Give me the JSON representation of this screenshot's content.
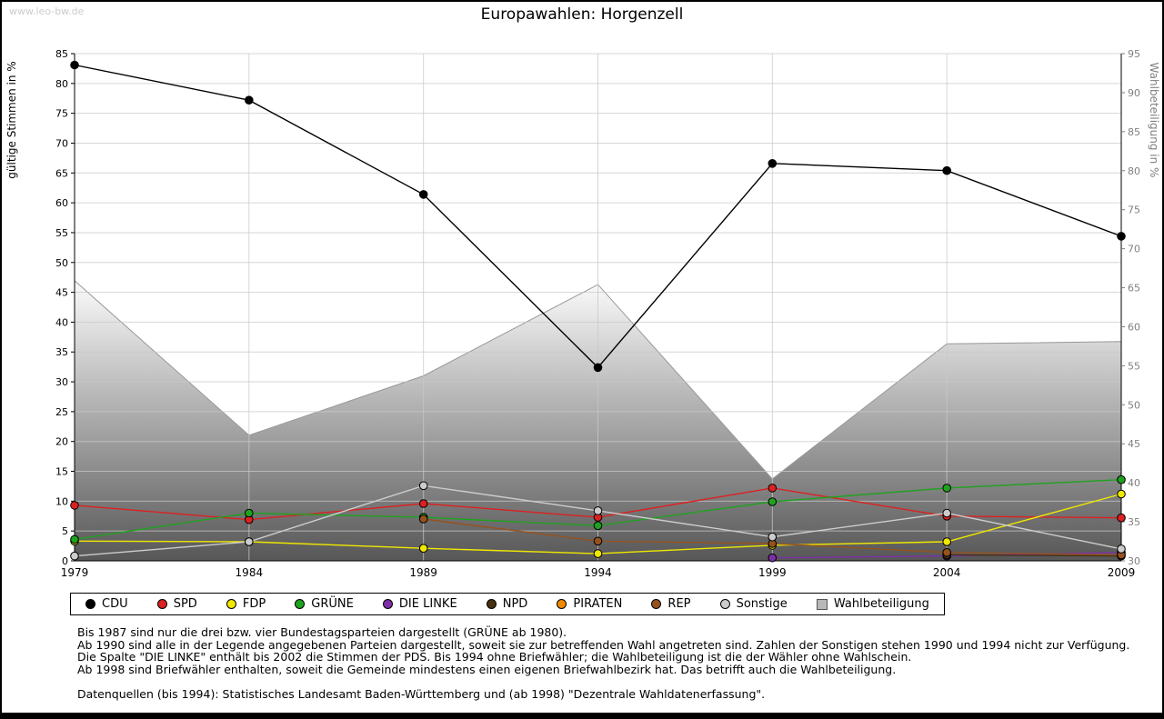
{
  "page": {
    "watermark": "www.leo-bw.de",
    "title": "Europawahlen: Horgenzell"
  },
  "chart_data": {
    "type": "line",
    "title": "Europawahlen: Horgenzell",
    "x": [
      1979,
      1984,
      1989,
      1994,
      1999,
      2004,
      2009
    ],
    "left_axis": {
      "label": "gültige Stimmen in %",
      "min": 0,
      "max": 85,
      "step": 5
    },
    "right_axis": {
      "label": "Wahlbeteiligung in %",
      "min": 30,
      "max": 95,
      "step": 5
    },
    "grid": true,
    "legend_position": "bottom",
    "series": [
      {
        "name": "CDU",
        "color": "#000000",
        "values": [
          83.1,
          77.2,
          61.4,
          32.4,
          66.6,
          65.4,
          54.4
        ]
      },
      {
        "name": "SPD",
        "color": "#dd2020",
        "values": [
          9.3,
          6.9,
          9.6,
          7.3,
          12.2,
          7.5,
          7.2
        ]
      },
      {
        "name": "FDP",
        "color": "#f0e800",
        "values": [
          3.3,
          3.2,
          2.1,
          1.2,
          2.6,
          3.2,
          11.2
        ]
      },
      {
        "name": "GRÜNE",
        "color": "#1fa21f",
        "values": [
          3.6,
          8.0,
          7.3,
          5.9,
          9.9,
          12.2,
          13.6
        ]
      },
      {
        "name": "DIE LINKE",
        "color": "#7d2fa8",
        "values": [
          null,
          null,
          null,
          null,
          0.5,
          0.8,
          1.4
        ]
      },
      {
        "name": "NPD",
        "color": "#463213",
        "values": [
          null,
          null,
          null,
          null,
          null,
          1.0,
          0.8
        ]
      },
      {
        "name": "PIRATEN",
        "color": "#f28a00",
        "values": [
          null,
          null,
          null,
          null,
          null,
          null,
          1.1
        ]
      },
      {
        "name": "REP",
        "color": "#96521e",
        "values": [
          null,
          null,
          7.0,
          3.3,
          2.9,
          1.4,
          1.0
        ]
      },
      {
        "name": "Sonstige",
        "color": "#cccccc",
        "values": [
          0.8,
          3.2,
          12.6,
          8.4,
          4.0,
          8.0,
          2.0
        ]
      }
    ],
    "turnout": {
      "name": "Wahlbeteiligung",
      "axis": "right",
      "values": [
        65.9,
        46.1,
        53.7,
        65.4,
        40.5,
        57.8,
        58.1
      ],
      "fill_top": "#fbfbfb",
      "fill_bottom": "#575757",
      "outline": "#989898"
    },
    "legend": [
      {
        "label": "CDU",
        "color": "#000000",
        "shape": "circle"
      },
      {
        "label": "SPD",
        "color": "#dd2020",
        "shape": "circle"
      },
      {
        "label": "FDP",
        "color": "#f0e800",
        "shape": "circle"
      },
      {
        "label": "GRÜNE",
        "color": "#1fa21f",
        "shape": "circle"
      },
      {
        "label": "DIE LINKE",
        "color": "#7d2fa8",
        "shape": "circle"
      },
      {
        "label": "NPD",
        "color": "#463213",
        "shape": "circle"
      },
      {
        "label": "PIRATEN",
        "color": "#f28a00",
        "shape": "circle"
      },
      {
        "label": "REP",
        "color": "#96521e",
        "shape": "circle"
      },
      {
        "label": "Sonstige",
        "color": "#cccccc",
        "shape": "circle"
      },
      {
        "label": "Wahlbeteiligung",
        "color": "#b8b8b8",
        "shape": "square"
      }
    ]
  },
  "footnotes": [
    "Bis 1987 sind nur die drei bzw. vier Bundestagsparteien dargestellt (GRÜNE ab 1980).",
    "Ab 1990 sind alle in der Legende angegebenen Parteien dargestellt, soweit sie zur betreffenden Wahl angetreten sind. Zahlen der Sonstigen stehen 1990 und 1994 nicht zur Verfügung.",
    "Die Spalte \"DIE LINKE\" enthält bis 2002 die Stimmen der PDS. Bis 1994 ohne Briefwähler; die Wahlbeteiligung ist die der Wähler ohne Wahlschein.",
    "Ab 1998 sind Briefwähler enthalten, soweit die Gemeinde mindestens einen eigenen Briefwahlbezirk hat. Das betrifft auch die Wahlbeteiligung.",
    "",
    "Datenquellen (bis 1994): Statistisches Landesamt Baden-Württemberg und (ab 1998) \"Dezentrale Wahldatenerfassung\"."
  ]
}
